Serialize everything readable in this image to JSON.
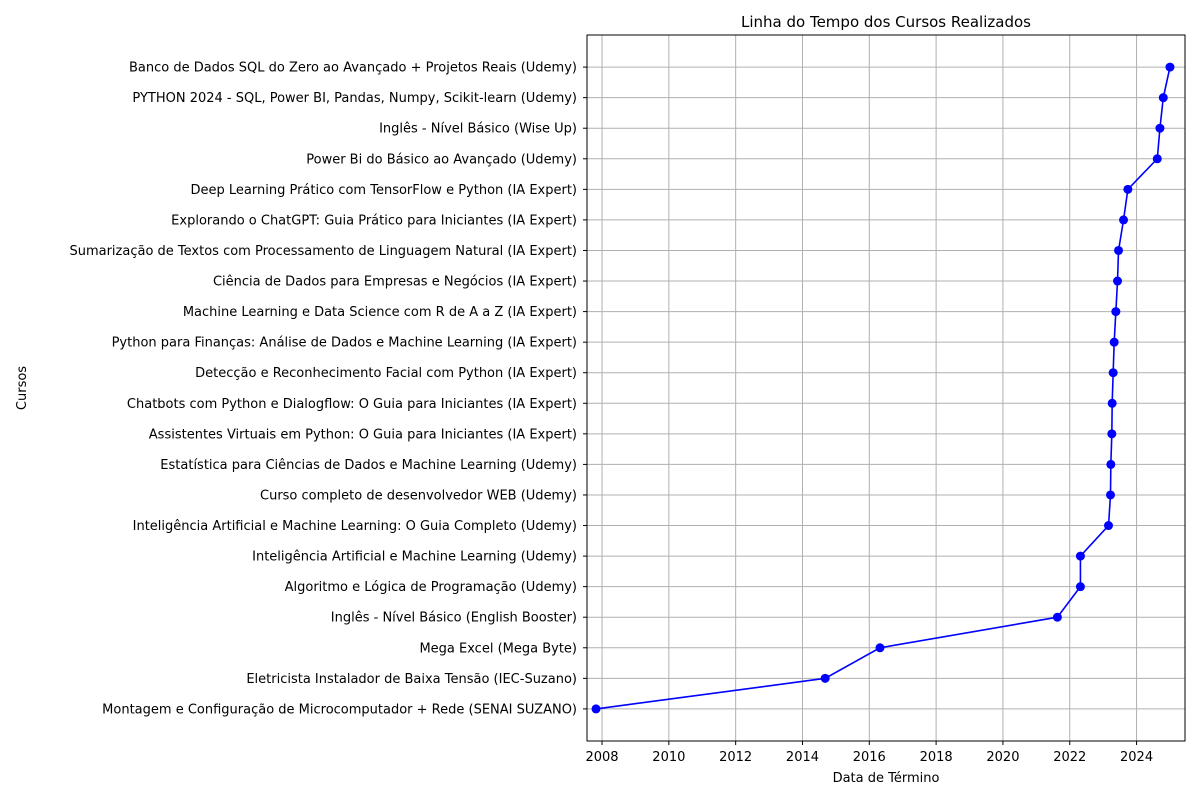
{
  "chart_data": {
    "type": "line",
    "title": "Linha do Tempo dos Cursos Realizados",
    "xlabel": "Data de Término",
    "ylabel": "Cursos",
    "x_ticks": [
      "2008",
      "2010",
      "2012",
      "2014",
      "2016",
      "2018",
      "2020",
      "2022",
      "2024"
    ],
    "xlim": [
      2007.55,
      2025.45
    ],
    "grid": true,
    "colors": {
      "line": "#0000ff",
      "marker": "#0000ff",
      "grid": "#b0b0b0",
      "axis": "#000000"
    },
    "categories": [
      "Montagem e Configuração de Microcomputador + Rede (SENAI SUZANO)",
      "Eletricista Instalador de Baixa Tensão (IEC-Suzano)",
      "Mega Excel (Mega Byte)",
      "Inglês - Nível Básico (English Booster)",
      "Algoritmo e Lógica de Programação (Udemy)",
      "Inteligência Artificial e Machine Learning (Udemy)",
      "Inteligência Artificial e Machine Learning: O Guia Completo (Udemy)",
      "Curso completo de desenvolvedor WEB (Udemy)",
      "Estatística para Ciências de Dados e Machine Learning (Udemy)",
      "Assistentes Virtuais em Python: O Guia para Iniciantes (IA Expert)",
      "Chatbots com Python e Dialogflow: O Guia para Iniciantes (IA Expert)",
      "Detecção e Reconhecimento Facial com Python (IA Expert)",
      "Python para Finanças: Análise de Dados e Machine Learning (IA Expert)",
      "Machine Learning e Data Science com R de A a Z (IA Expert)",
      "Ciência de Dados para Empresas e Negócios (IA Expert)",
      "Sumarização de Textos com Processamento de Linguagem Natural (IA Expert)",
      "Explorando o ChatGPT: Guia Prático para Iniciantes (IA Expert)",
      "Deep Learning Prático com TensorFlow e Python (IA Expert)",
      "Power Bi do Básico ao Avançado (Udemy)",
      "Inglês - Nível Básico (Wise Up)",
      "PYTHON 2024 - SQL, Power BI, Pandas, Numpy, Scikit-learn (Udemy)",
      "Banco de Dados SQL do Zero ao Avançado + Projetos Reais (Udemy)"
    ],
    "x": [
      2007.82,
      2014.68,
      2016.32,
      2021.63,
      2022.32,
      2022.32,
      2023.16,
      2023.22,
      2023.23,
      2023.26,
      2023.27,
      2023.3,
      2023.33,
      2023.38,
      2023.43,
      2023.46,
      2023.61,
      2023.74,
      2024.62,
      2024.7,
      2024.8,
      2025.0
    ]
  }
}
